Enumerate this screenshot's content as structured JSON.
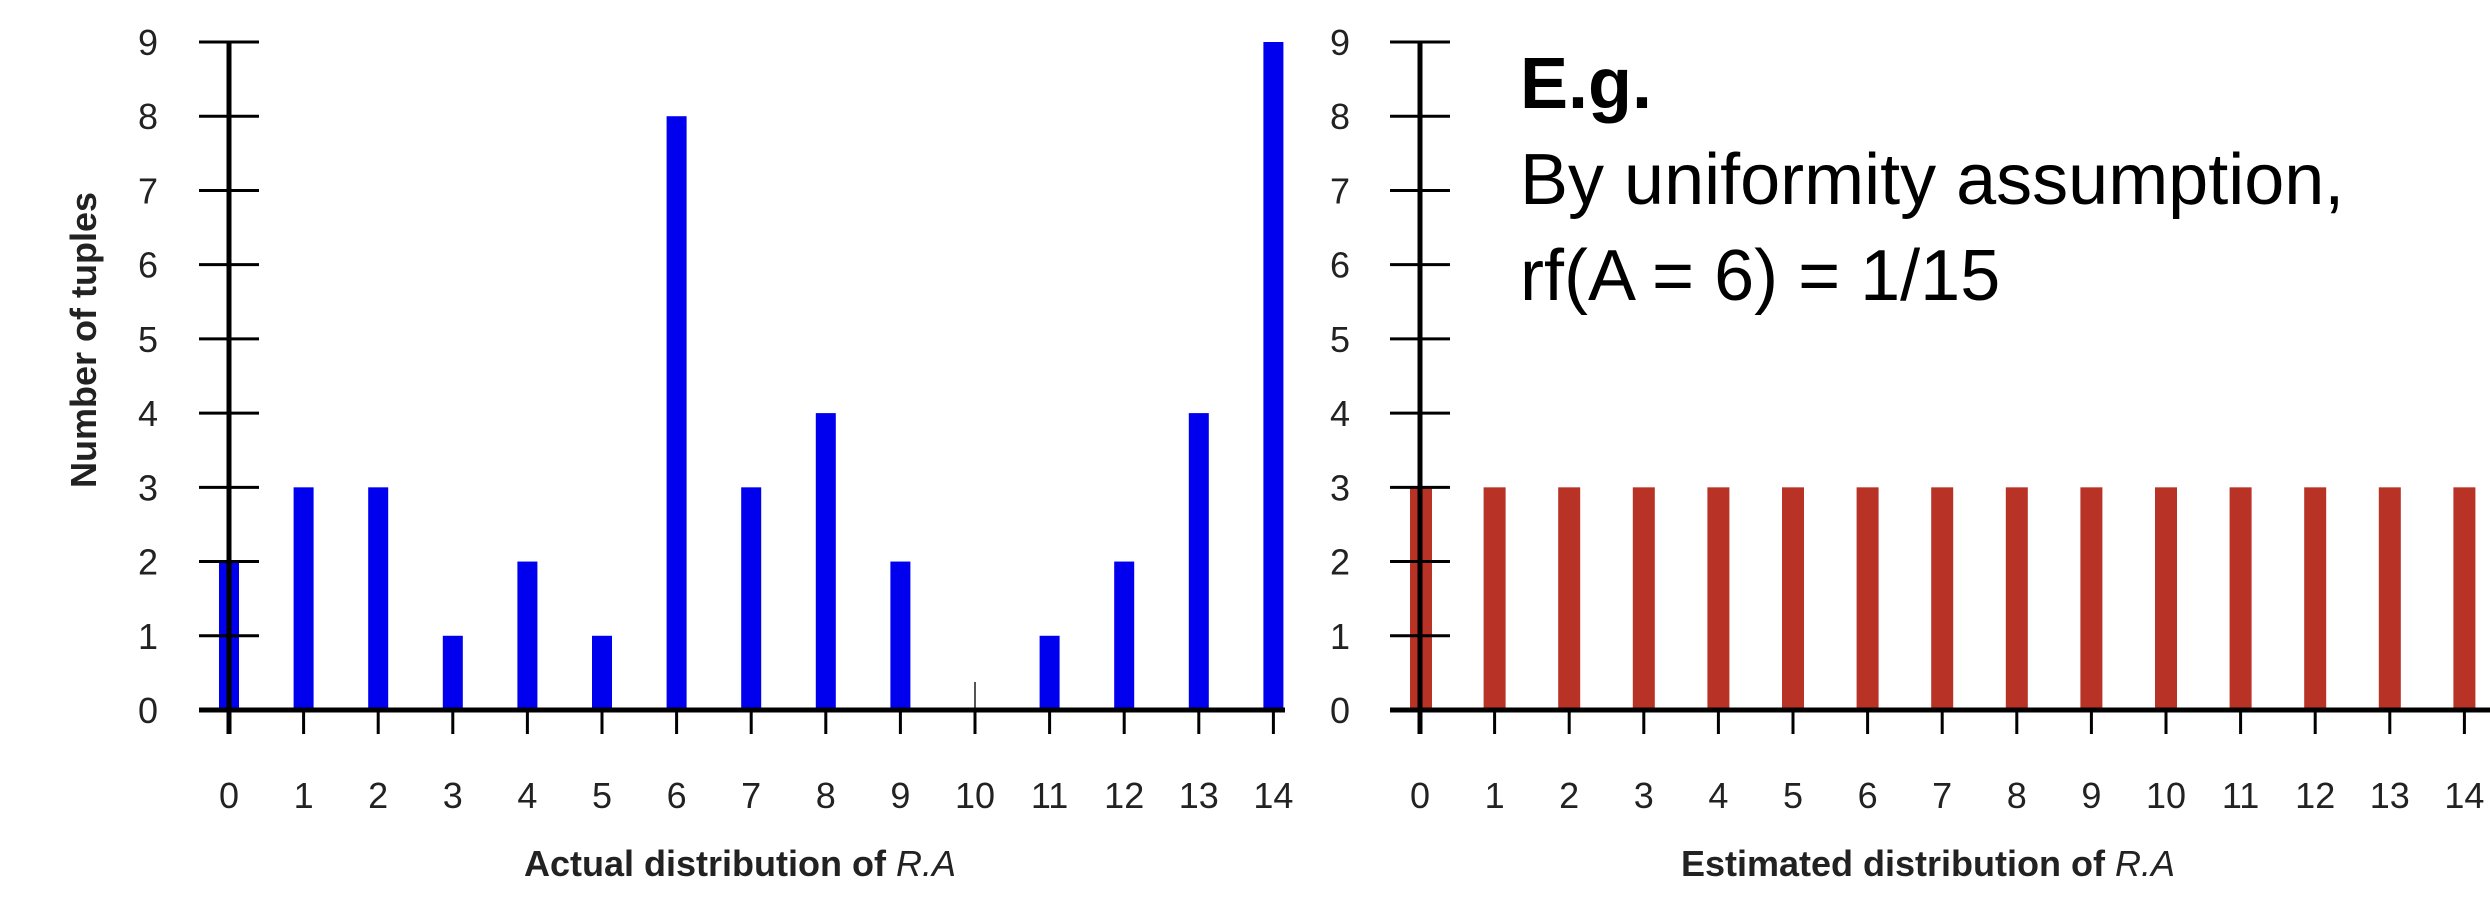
{
  "chart_data": [
    {
      "type": "bar",
      "categories": [
        "0",
        "1",
        "2",
        "3",
        "4",
        "5",
        "6",
        "7",
        "8",
        "9",
        "10",
        "11",
        "12",
        "13",
        "14"
      ],
      "values": [
        2,
        3,
        3,
        1,
        2,
        1,
        8,
        3,
        4,
        2,
        0,
        1,
        2,
        4,
        9
      ],
      "ylabel": "Number of tuples",
      "xlabel_prefix": "Actual distribution of ",
      "xlabel_var": "R.A",
      "ylim": [
        0,
        9
      ],
      "yticks": [
        "0",
        "1",
        "2",
        "3",
        "4",
        "5",
        "6",
        "7",
        "8",
        "9"
      ],
      "bar_color": "#0000ee",
      "grid": false
    },
    {
      "type": "bar",
      "categories": [
        "0",
        "1",
        "2",
        "3",
        "4",
        "5",
        "6",
        "7",
        "8",
        "9",
        "10",
        "11",
        "12",
        "13",
        "14"
      ],
      "values": [
        3,
        3,
        3,
        3,
        3,
        3,
        3,
        3,
        3,
        3,
        3,
        3,
        3,
        3,
        3
      ],
      "xlabel_prefix": "Estimated distribution of ",
      "xlabel_var": "R.A",
      "ylim": [
        0,
        9
      ],
      "yticks": [
        "0",
        "1",
        "2",
        "3",
        "4",
        "5",
        "6",
        "7",
        "8",
        "9"
      ],
      "bar_color": "#b83226",
      "grid": false
    }
  ],
  "annotation": {
    "heading": "E.g.",
    "line1": "By uniformity assumption,",
    "line2": "rf(A = 6) = 1/15"
  }
}
